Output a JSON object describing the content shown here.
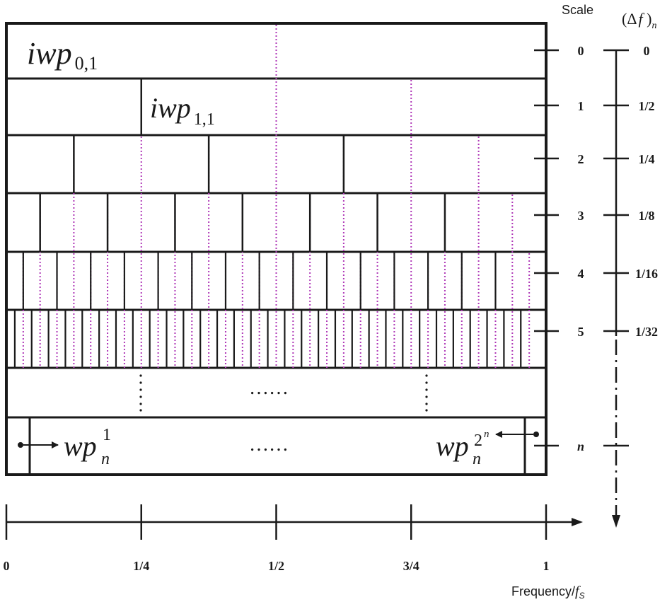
{
  "header": {
    "scale_title": "Scale",
    "delta_title": "(Δ",
    "delta_f": "f",
    "delta_close": " )",
    "delta_sub": "n"
  },
  "nodes": {
    "iwp01": {
      "base": "iwp",
      "sub": "0,1"
    },
    "iwp11": {
      "base": "iwp",
      "sub": "1,1"
    },
    "wp1": {
      "base": "wp",
      "sub": "n",
      "sup": "1"
    },
    "wp2n": {
      "base": "wp",
      "sub": "n",
      "sup": "2",
      "supsup": "n"
    }
  },
  "ellipsis": "……",
  "levels": [
    {
      "scale": "0",
      "delta": "0"
    },
    {
      "scale": "1",
      "delta": "1/2"
    },
    {
      "scale": "2",
      "delta": "1/4"
    },
    {
      "scale": "3",
      "delta": "1/8"
    },
    {
      "scale": "4",
      "delta": "1/16"
    },
    {
      "scale": "5",
      "delta": "1/32"
    },
    {
      "scale": "n",
      "delta": ""
    }
  ],
  "frequency_axis": {
    "ticks": [
      "0",
      "1/4",
      "1/2",
      "3/4",
      "1"
    ],
    "label": "Frequency/",
    "label_unit": "f",
    "label_unit_sub": "S"
  },
  "colors": {
    "line": "#1a1a1a",
    "dotted_marker": "#b03ab8"
  }
}
